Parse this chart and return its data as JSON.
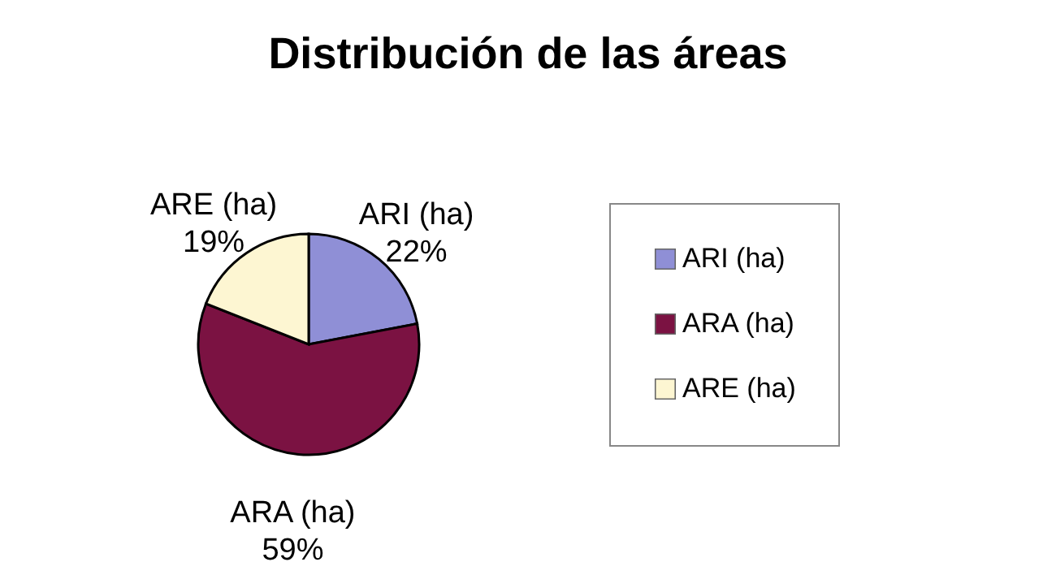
{
  "chart_data": {
    "type": "pie",
    "title": "Distribución de las áreas",
    "categories": [
      "ARI (ha)",
      "ARA (ha)",
      "ARE (ha)"
    ],
    "values": [
      22,
      59,
      19
    ],
    "colors": [
      "#8f8fd6",
      "#7b1242",
      "#fdf6d2"
    ],
    "value_labels": [
      "22%",
      "59%",
      "19%"
    ],
    "legend": "right"
  }
}
